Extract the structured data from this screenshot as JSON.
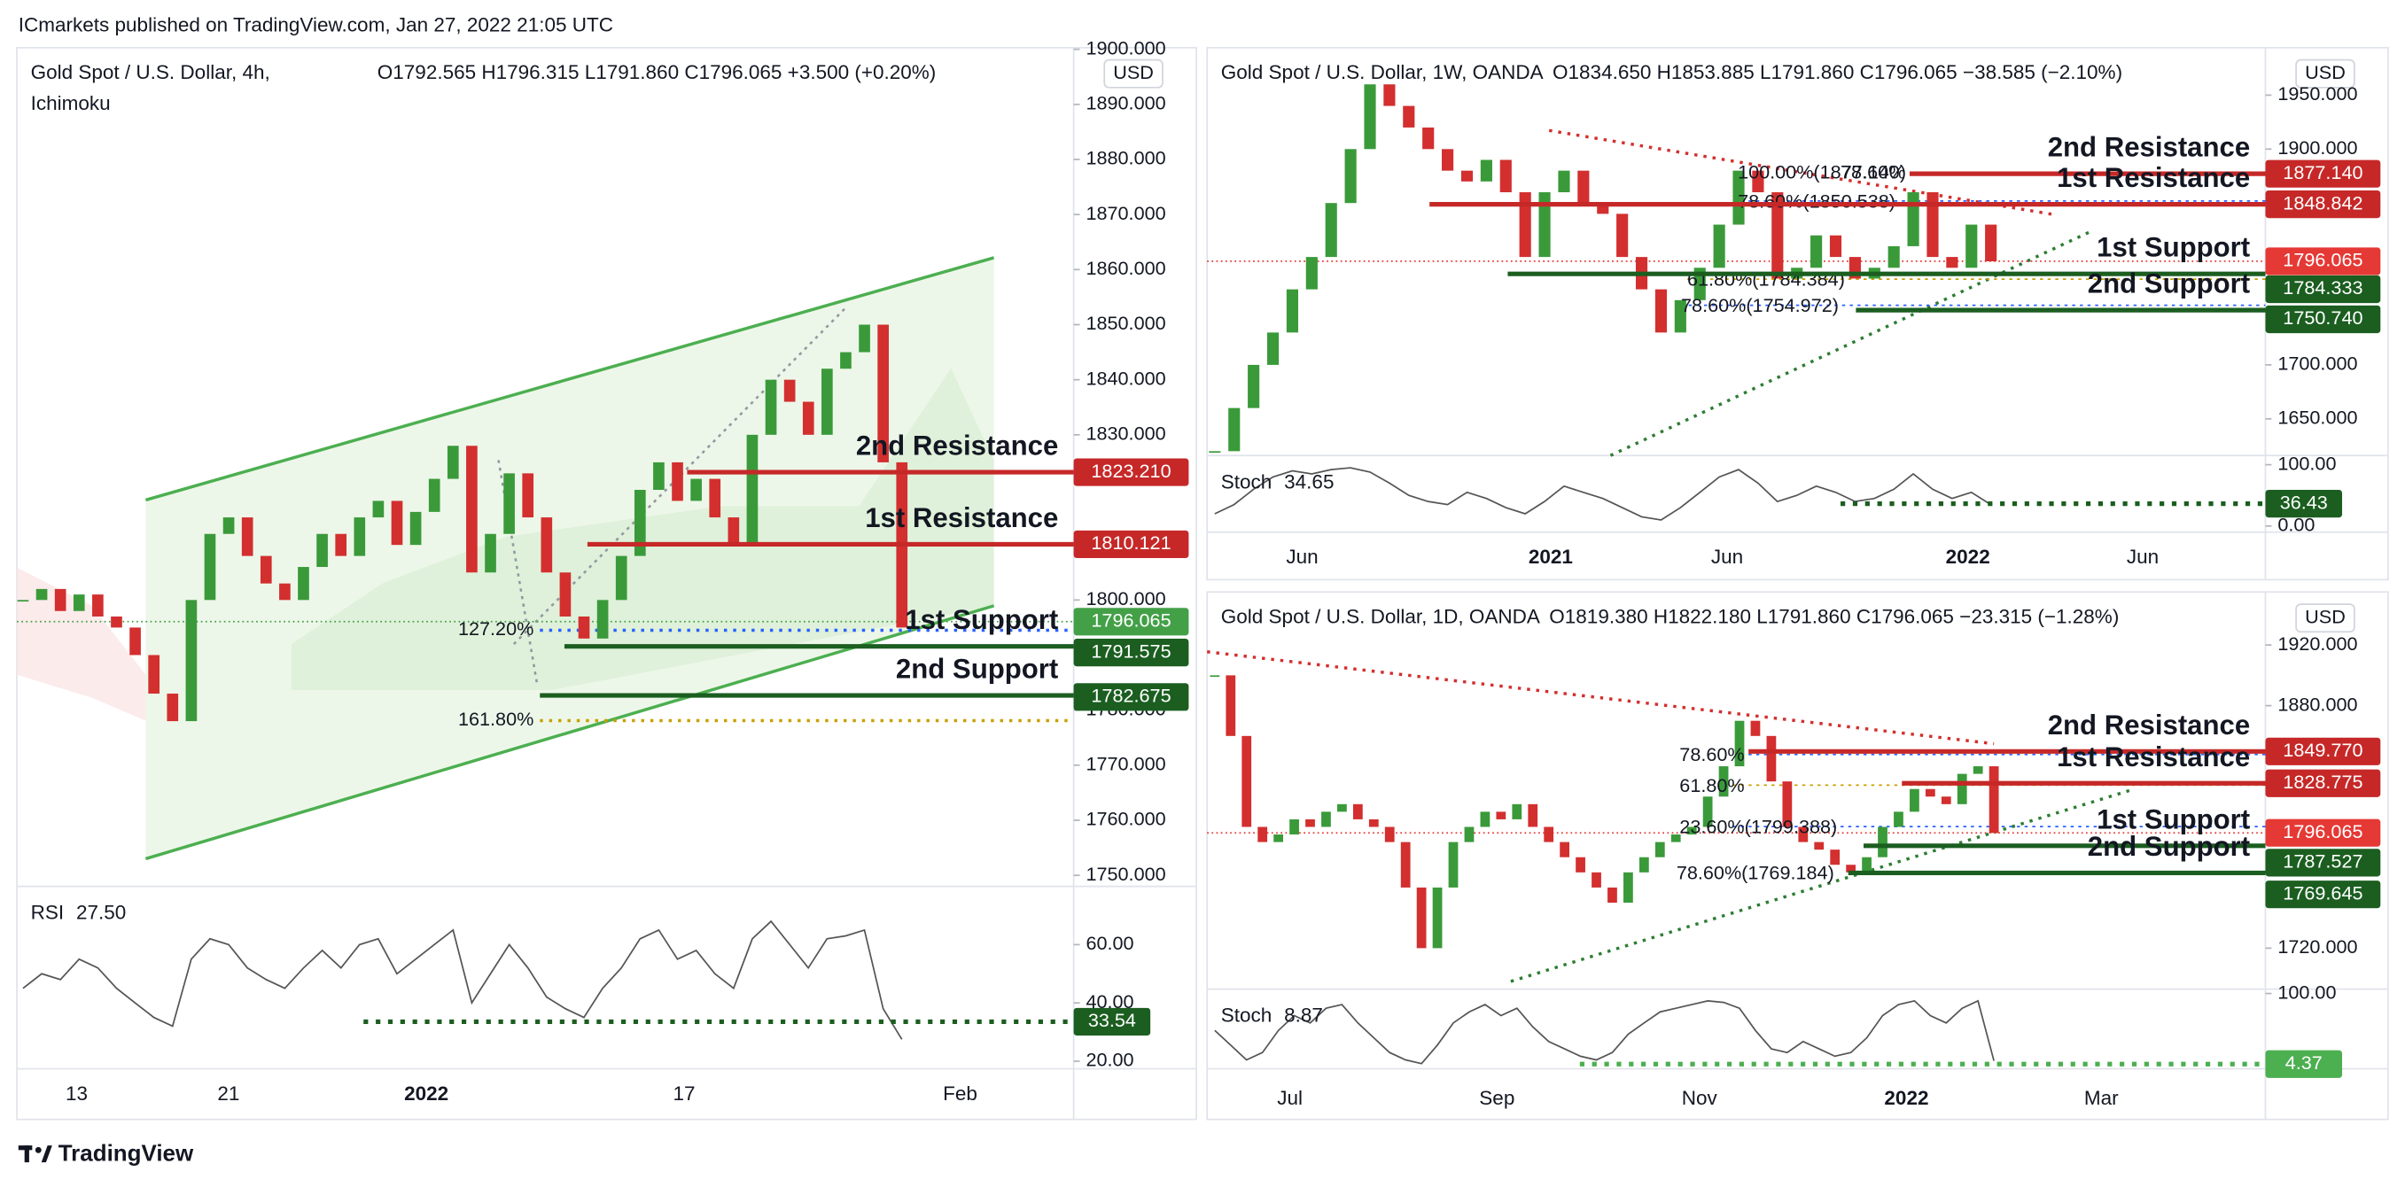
{
  "header": "ICmarkets published on TradingView.com, Jan 27, 2022 21:05 UTC",
  "footer": "TradingView",
  "chart_data": [
    {
      "type": "candlestick",
      "title": "Gold Spot / U.S. Dollar, 4h,",
      "subtitle": "Ichimoku",
      "currency": "USD",
      "ohlc": "O1792.565 H1796.315 L1791.860 C1796.065 +3.500 (+0.20%)",
      "ohlc_color": "#2e8b2e",
      "up_color": "#3a9a3a",
      "down_color": "#d32f2f",
      "values": [
        1800,
        1802,
        1798,
        1801,
        1797,
        1795,
        1790,
        1783,
        1778,
        1800,
        1812,
        1815,
        1808,
        1803,
        1800,
        1806,
        1812,
        1808,
        1815,
        1818,
        1810,
        1816,
        1822,
        1828,
        1805,
        1812,
        1823,
        1815,
        1805,
        1797,
        1793,
        1800,
        1808,
        1820,
        1825,
        1818,
        1822,
        1815,
        1810,
        1830,
        1840,
        1836,
        1830,
        1842,
        1845,
        1850,
        1825,
        1795
      ],
      "ylim": [
        1748,
        1900.3
      ],
      "yticks": [
        {
          "value": 1900,
          "label": "1900.000"
        },
        {
          "value": 1890,
          "label": "1890.000"
        },
        {
          "value": 1880,
          "label": "1880.000"
        },
        {
          "value": 1870,
          "label": "1870.000"
        },
        {
          "value": 1860,
          "label": "1860.000"
        },
        {
          "value": 1850,
          "label": "1850.000"
        },
        {
          "value": 1840,
          "label": "1840.000"
        },
        {
          "value": 1830,
          "label": "1830.000"
        },
        {
          "value": 1800,
          "label": "1800.000"
        },
        {
          "value": 1780,
          "label": "1780.000"
        },
        {
          "value": 1770,
          "label": "1770.000"
        },
        {
          "value": 1760,
          "label": "1760.000"
        },
        {
          "value": 1750,
          "label": "1750.000"
        }
      ],
      "levels": [
        {
          "name": "2nd Resistance",
          "value": 1823.21,
          "label": "1823.210",
          "color": "#c62828",
          "text_color": "#b2272d"
        },
        {
          "name": "1st Resistance",
          "value": 1810.121,
          "label": "1810.121",
          "color": "#c62828",
          "text_color": "#b2272d"
        },
        {
          "name": "1st Support",
          "value": 1791.575,
          "label": "1791.575",
          "color": "#1b5e20",
          "text_color": "#3d8c1f"
        },
        {
          "name": "2nd Support",
          "value": 1782.675,
          "label": "1782.675",
          "color": "#1b5e20",
          "text_color": "#3d8c1f"
        }
      ],
      "last_price": {
        "value": 1796.065,
        "label": "1796.065",
        "color": "#43a047"
      },
      "fibs": [
        {
          "label": "127.20%",
          "value": 1794.5,
          "color": "#2962ff"
        },
        {
          "label": "161.80%",
          "value": 1778.1,
          "color": "#c9a000"
        }
      ],
      "annotations": [],
      "time_labels": [
        "13",
        "21",
        "2022",
        "17",
        "Feb"
      ],
      "indicator": {
        "name": "RSI",
        "value_label": "27.50",
        "color": "#555555",
        "values": [
          45,
          50,
          48,
          55,
          52,
          45,
          40,
          35,
          32,
          55,
          62,
          60,
          52,
          48,
          45,
          52,
          58,
          52,
          60,
          62,
          50,
          55,
          60,
          65,
          40,
          50,
          60,
          52,
          42,
          38,
          35,
          45,
          52,
          62,
          65,
          55,
          58,
          50,
          45,
          62,
          68,
          60,
          52,
          62,
          63,
          65,
          38,
          27.5
        ],
        "ylim": [
          17.4,
          80
        ],
        "yticks": [
          {
            "value": 60,
            "label": "60.00"
          },
          {
            "value": 40,
            "label": "40.00"
          },
          {
            "value": 20,
            "label": "20.00"
          }
        ],
        "level": {
          "value": 33.54,
          "label": "33.54",
          "color": "#1b5e20"
        }
      }
    },
    {
      "type": "candlestick",
      "title": "Gold Spot / U.S. Dollar, 1W, OANDA",
      "currency": "USD",
      "ohlc": "O1834.650 H1853.885 L1791.860 C1796.065 −38.585 (−2.10%)",
      "ohlc_color": "#d32f2f",
      "up_color": "#3a9a3a",
      "down_color": "#d32f2f",
      "values": [
        1620,
        1660,
        1700,
        1730,
        1770,
        1800,
        1850,
        1900,
        1960,
        1940,
        1920,
        1900,
        1880,
        1870,
        1890,
        1860,
        1800,
        1860,
        1880,
        1850,
        1840,
        1800,
        1770,
        1730,
        1760,
        1790,
        1830,
        1880,
        1860,
        1780,
        1790,
        1820,
        1800,
        1780,
        1790,
        1810,
        1860,
        1800,
        1790,
        1830,
        1796
      ],
      "ylim": [
        1616,
        1994
      ],
      "yticks": [
        {
          "value": 1950,
          "label": "1950.000"
        },
        {
          "value": 1900,
          "label": "1900.000"
        },
        {
          "value": 1700,
          "label": "1700.000"
        },
        {
          "value": 1650,
          "label": "1650.000"
        }
      ],
      "levels": [
        {
          "name": "2nd Resistance",
          "value": 1877.14,
          "label": "1877.140",
          "color": "#c62828",
          "text_color": "#c0262d"
        },
        {
          "name": "1st Resistance",
          "value": 1848.842,
          "label": "1848.842",
          "color": "#c62828",
          "text_color": "#c0262d"
        },
        {
          "name": "1st Support",
          "value": 1784.333,
          "label": "1784.333",
          "color": "#1b5e20",
          "text_color": "#3d8c1f"
        },
        {
          "name": "2nd Support",
          "value": 1750.74,
          "label": "1750.740",
          "color": "#1b5e20",
          "text_color": "#3d8c1f"
        }
      ],
      "last_price": {
        "value": 1796.065,
        "label": "1796.065",
        "color": "#e53935"
      },
      "fibs": [],
      "annotations": [
        {
          "text": "100.00%(1877.140)",
          "color": "#787b86"
        },
        {
          "text": "78.60%",
          "color": "#2962ff"
        },
        {
          "text": "78.60%(1850.538)",
          "color": "#2962ff"
        },
        {
          "text": "61.80%(1784.384)",
          "color": "#c9a000"
        },
        {
          "text": "78.60%(1754.972)",
          "color": "#2962ff"
        }
      ],
      "time_labels": [
        "Jun",
        "2021",
        "Jun",
        "2022",
        "Jun"
      ],
      "indicator": {
        "name": "Stoch",
        "value_label": "34.65",
        "color": "#555555",
        "values": [
          20,
          35,
          60,
          80,
          90,
          85,
          92,
          95,
          88,
          70,
          50,
          40,
          35,
          55,
          45,
          30,
          20,
          40,
          65,
          55,
          45,
          30,
          15,
          10,
          30,
          55,
          80,
          92,
          70,
          40,
          50,
          65,
          55,
          40,
          45,
          60,
          85,
          60,
          45,
          55,
          34.65
        ],
        "ylim": [
          -10,
          115
        ],
        "yticks": [
          {
            "value": 100,
            "label": "100.00"
          },
          {
            "value": 0,
            "label": "0.00"
          }
        ],
        "level": {
          "value": 36.43,
          "label": "36.43",
          "color": "#1b5e20"
        }
      }
    },
    {
      "type": "candlestick",
      "title": "Gold Spot / U.S. Dollar, 1D, OANDA",
      "currency": "USD",
      "ohlc": "O1819.380 H1822.180 L1791.860 C1796.065 −23.315 (−1.28%)",
      "ohlc_color": "#d32f2f",
      "up_color": "#3a9a3a",
      "down_color": "#d32f2f",
      "values": [
        1900,
        1860,
        1800,
        1790,
        1795,
        1805,
        1800,
        1810,
        1815,
        1805,
        1800,
        1790,
        1760,
        1720,
        1760,
        1790,
        1800,
        1810,
        1805,
        1815,
        1800,
        1790,
        1780,
        1770,
        1760,
        1750,
        1770,
        1780,
        1790,
        1795,
        1800,
        1820,
        1840,
        1870,
        1860,
        1830,
        1800,
        1790,
        1785,
        1775,
        1770,
        1780,
        1800,
        1810,
        1825,
        1820,
        1815,
        1835,
        1840,
        1796
      ],
      "ylim": [
        1693,
        1955
      ],
      "yticks": [
        {
          "value": 1920,
          "label": "1920.000"
        },
        {
          "value": 1880,
          "label": "1880.000"
        },
        {
          "value": 1720,
          "label": "1720.000"
        }
      ],
      "levels": [
        {
          "name": "2nd Resistance",
          "value": 1849.77,
          "label": "1849.770",
          "color": "#c62828",
          "text_color": "#c0262d"
        },
        {
          "name": "1st Resistance",
          "value": 1828.775,
          "label": "1828.775",
          "color": "#c62828",
          "text_color": "#c0262d"
        },
        {
          "name": "1st Support",
          "value": 1787.527,
          "label": "1787.527",
          "color": "#1b5e20",
          "text_color": "#3d8c1f"
        },
        {
          "name": "2nd Support",
          "value": 1769.645,
          "label": "1769.645",
          "color": "#1b5e20",
          "text_color": "#3d8c1f"
        }
      ],
      "last_price": {
        "value": 1796.065,
        "label": "1796.065",
        "color": "#e53935"
      },
      "fibs": [],
      "annotations": [
        {
          "text": "78.60%",
          "color": "#2962ff"
        },
        {
          "text": "61.80%",
          "color": "#c9a000"
        },
        {
          "text": "23.60%(1799.388)",
          "color": "#2962ff"
        },
        {
          "text": "78.60%(1769.184)",
          "color": "#2962ff"
        }
      ],
      "time_labels": [
        "Jul",
        "Sep",
        "Nov",
        "2022",
        "Mar"
      ],
      "indicator": {
        "name": "Stoch",
        "value_label": "8.87",
        "color": "#555555",
        "values": [
          50,
          30,
          10,
          20,
          50,
          70,
          60,
          80,
          85,
          60,
          40,
          20,
          10,
          5,
          30,
          60,
          75,
          85,
          70,
          80,
          55,
          35,
          25,
          15,
          10,
          20,
          45,
          60,
          75,
          80,
          85,
          90,
          88,
          80,
          50,
          25,
          20,
          35,
          25,
          15,
          20,
          40,
          70,
          85,
          90,
          70,
          60,
          80,
          90,
          8.87
        ],
        "ylim": [
          -2,
          106
        ],
        "yticks": [
          {
            "value": 100,
            "label": "100.00"
          }
        ],
        "level": {
          "value": 4.37,
          "label": "4.37",
          "color": "#4caf50"
        }
      }
    }
  ]
}
